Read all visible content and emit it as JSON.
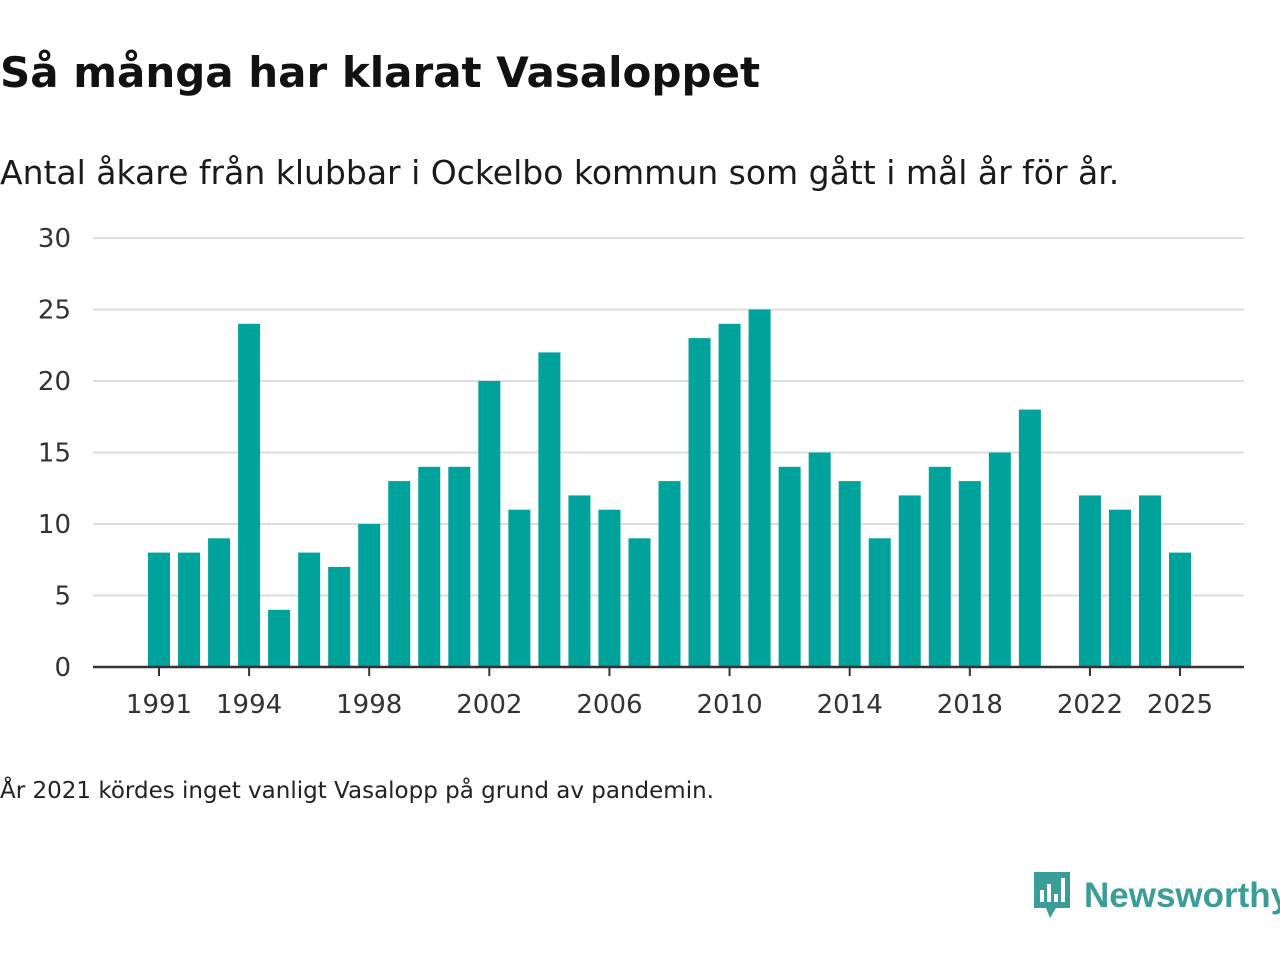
{
  "chart_data": {
    "type": "bar",
    "title": "Så många har klarat Vasaloppet",
    "subtitle": "Antal åkare från klubbar i Ockelbo kommun som gått i mål år för år.",
    "xlabel": "",
    "ylabel": "",
    "categories": [
      1991,
      1992,
      1993,
      1994,
      1995,
      1996,
      1997,
      1998,
      1999,
      2000,
      2001,
      2002,
      2003,
      2004,
      2005,
      2006,
      2007,
      2008,
      2009,
      2010,
      2011,
      2012,
      2013,
      2014,
      2015,
      2016,
      2017,
      2018,
      2019,
      2020,
      2021,
      2022,
      2023,
      2024,
      2025
    ],
    "values": [
      8,
      8,
      9,
      24,
      4,
      8,
      7,
      10,
      13,
      14,
      14,
      20,
      11,
      22,
      12,
      11,
      9,
      13,
      23,
      24,
      25,
      14,
      15,
      13,
      9,
      12,
      14,
      13,
      15,
      18,
      null,
      12,
      11,
      12,
      8
    ],
    "ylim": [
      0,
      30
    ],
    "yticks": [
      "0",
      "5",
      "10",
      "15",
      "20",
      "25",
      "30"
    ],
    "xtick_labels": [
      "1991",
      "1994",
      "1998",
      "2002",
      "2006",
      "2010",
      "2014",
      "2018",
      "2022",
      "2025"
    ],
    "grid": true,
    "bar_color": "#00a39b",
    "note": "År 2021 kördes inget vanligt Vasalopp på grund av pandemin."
  },
  "brand": {
    "name": "Newsworthy",
    "color": "#3a9d98",
    "icon": "newsworthy-logo-icon"
  }
}
